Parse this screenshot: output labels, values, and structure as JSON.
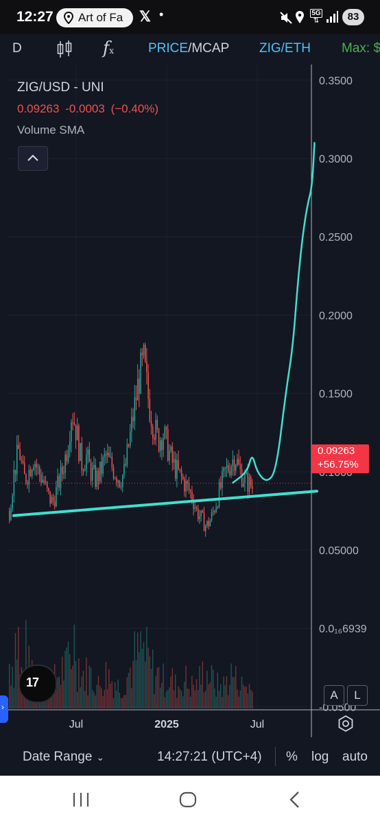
{
  "status_bar": {
    "time": "12:27",
    "notification_app": "Art of Fa",
    "notification_icons": [
      "location-pin-icon",
      "x-logo-icon",
      "dot-icon"
    ],
    "system_icons": [
      "mute-icon",
      "location-icon",
      "5g-icon",
      "signal-icon"
    ],
    "network": "5G",
    "battery": "83"
  },
  "toolbar": {
    "interval": "D",
    "chart_type_icon": "candlestick-icon",
    "indicators_icon": "function-icon",
    "mode_price": "PRICE",
    "mode_separator": "/",
    "mode_mcap": "MCAP",
    "pair_switch": "ZIG/ETH",
    "max_label": "Max: $"
  },
  "legend": {
    "symbol": "ZIG/USD - UNI",
    "price": "0.09263",
    "change": "-0.0003",
    "change_pct": "(−0.40%)",
    "indicator": "Volume SMA"
  },
  "price_tag": {
    "price": "0.09263",
    "change": "+56.75%"
  },
  "buttons": {
    "auto_scale": "A",
    "log_scale": "L",
    "tv_logo": "17"
  },
  "bottom_bar": {
    "date_range": "Date Range",
    "clock": "14:27:21 (UTC+4)",
    "percent": "%",
    "log": "log",
    "auto": "auto"
  },
  "colors": {
    "background": "#131722",
    "up": "#26a69a",
    "down": "#ef5350",
    "drawing": "#40e0d0",
    "price_tag": "#f23645",
    "accent_blue": "#4fc3f7",
    "max_green": "#4caf50"
  },
  "chart_data": {
    "type": "candlestick",
    "title": "ZIG/USD - UNI",
    "x_ticks": [
      "Jul",
      "2025",
      "Jul"
    ],
    "y_ticks": [
      "0.3500",
      "0.3000",
      "0.2500",
      "0.2000",
      "0.1500",
      "0.1000",
      "0.05000",
      "0.0₁₆6939",
      "-0.0500"
    ],
    "ylim": [
      -0.052,
      0.36
    ],
    "grid": true,
    "last_price": 0.09263,
    "price_path_weekly": [
      0.075,
      0.1,
      0.115,
      0.095,
      0.1,
      0.11,
      0.1,
      0.095,
      0.085,
      0.08,
      0.09,
      0.1,
      0.115,
      0.14,
      0.125,
      0.105,
      0.11,
      0.1,
      0.095,
      0.1,
      0.11,
      0.105,
      0.1,
      0.095,
      0.1,
      0.12,
      0.14,
      0.16,
      0.17,
      0.145,
      0.13,
      0.12,
      0.125,
      0.115,
      0.105,
      0.1,
      0.095,
      0.09,
      0.085,
      0.075,
      0.07,
      0.065,
      0.07,
      0.08,
      0.09,
      0.1,
      0.105,
      0.11,
      0.1,
      0.095,
      0.092
    ],
    "volume_weekly": [
      0.4,
      0.6,
      0.3,
      0.5,
      0.35,
      0.3,
      0.25,
      0.2,
      0.3,
      0.25,
      0.3,
      0.35,
      0.45,
      0.6,
      0.4,
      0.3,
      0.3,
      0.25,
      0.2,
      0.25,
      0.3,
      0.25,
      0.2,
      0.2,
      0.3,
      0.35,
      0.45,
      0.5,
      0.45,
      0.35,
      0.3,
      0.3,
      0.25,
      0.25,
      0.2,
      0.2,
      0.25,
      0.2,
      0.2,
      0.25,
      0.3,
      0.3,
      0.25,
      0.2,
      0.2,
      0.25,
      0.3,
      0.25,
      0.2,
      0.2,
      0.15
    ],
    "drawings": {
      "support_line": [
        [
          0,
          0.072
        ],
        [
          60,
          0.0876
        ]
      ],
      "projection": [
        [
          46.5,
          0.093
        ],
        [
          49.5,
          0.1
        ],
        [
          50.5,
          0.112
        ],
        [
          51.5,
          0.1
        ],
        [
          53.5,
          0.093
        ],
        [
          55.5,
          0.1
        ],
        [
          57.5,
          0.15
        ],
        [
          59,
          0.18
        ],
        [
          60,
          0.22
        ],
        [
          61,
          0.25
        ],
        [
          62,
          0.27
        ],
        [
          63,
          0.282
        ],
        [
          63.5,
          0.31
        ]
      ]
    }
  }
}
